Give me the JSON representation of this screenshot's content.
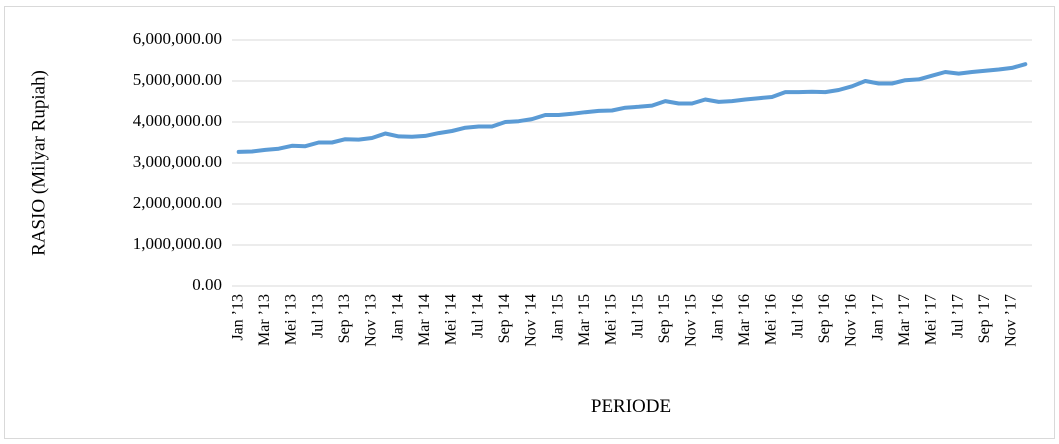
{
  "chart_data": {
    "type": "line",
    "x_label": "PERIODE",
    "y_label": "RASIO (Milyar Rupiah)",
    "categories": [
      "Jan ’13",
      null,
      "Mar ’13",
      null,
      "Mei ’13",
      null,
      "Jul ’13",
      null,
      "Sep ’13",
      null,
      "Nov ’13",
      null,
      "Jan ’14",
      null,
      "Mar ’14",
      null,
      "Mei ’14",
      null,
      "Jul ’14",
      null,
      "Sep ’14",
      null,
      "Nov ’14",
      null,
      "Jan ’15",
      null,
      "Mar ’15",
      null,
      "Mei ’15",
      null,
      "Jul ’15",
      null,
      "Sep ’15",
      null,
      "Nov ’15",
      null,
      "Jan ’16",
      null,
      "Mar ’16",
      null,
      "Mei ’16",
      null,
      "Jul ’16",
      null,
      "Sep ’16",
      null,
      "Nov ’16",
      null,
      "Jan ’17",
      null,
      "Mar ’17",
      null,
      "Mei ’17",
      null,
      "Jul ’17",
      null,
      "Sep ’17",
      null,
      "Nov ’17",
      null
    ],
    "values": [
      3270000,
      3280000,
      3320000,
      3350000,
      3420000,
      3410000,
      3500000,
      3500000,
      3580000,
      3570000,
      3610000,
      3720000,
      3650000,
      3640000,
      3660000,
      3730000,
      3780000,
      3860000,
      3890000,
      3890000,
      4000000,
      4020000,
      4070000,
      4170000,
      4170000,
      4200000,
      4240000,
      4270000,
      4280000,
      4350000,
      4370000,
      4400000,
      4510000,
      4450000,
      4450000,
      4550000,
      4490000,
      4510000,
      4550000,
      4580000,
      4610000,
      4730000,
      4730000,
      4740000,
      4730000,
      4780000,
      4870000,
      5000000,
      4940000,
      4940000,
      5020000,
      5040000,
      5130000,
      5220000,
      5180000,
      5220000,
      5250000,
      5280000,
      5320000,
      5410000
    ],
    "color": "#5b9bd5",
    "ylim": [
      0,
      6000000
    ],
    "yticks": [
      {
        "value": 0,
        "label": "0.00"
      },
      {
        "value": 1000000,
        "label": "1,000,000.00"
      },
      {
        "value": 2000000,
        "label": "2,000,000.00"
      },
      {
        "value": 3000000,
        "label": "3,000,000.00"
      },
      {
        "value": 4000000,
        "label": "4,000,000.00"
      },
      {
        "value": 5000000,
        "label": "5,000,000.00"
      },
      {
        "value": 6000000,
        "label": "6,000,000.00"
      }
    ],
    "grid": true
  }
}
